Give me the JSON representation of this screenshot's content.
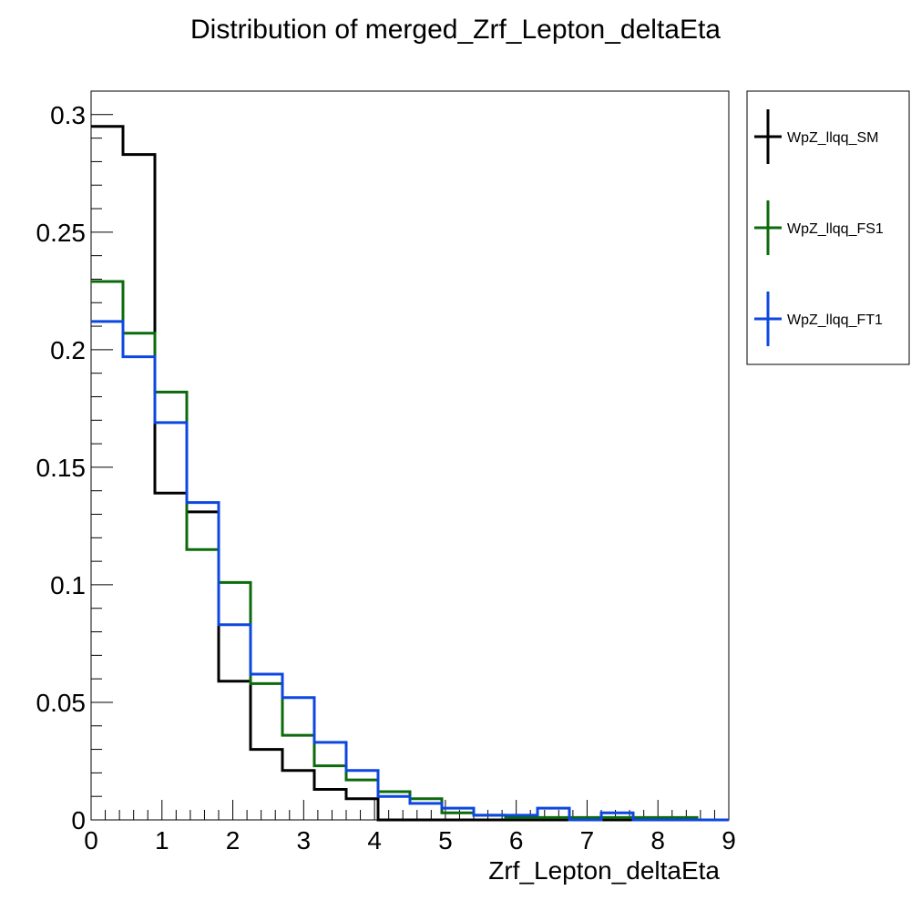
{
  "chart_data": {
    "type": "histogram",
    "title": "Distribution of merged_Zrf_Lepton_deltaEta",
    "xlabel": "Zrf_Lepton_deltaEta",
    "ylabel": "",
    "xlim": [
      0,
      9
    ],
    "ylim": [
      0,
      0.31
    ],
    "bin_edges": [
      0,
      0.45,
      0.9,
      1.35,
      1.8,
      2.25,
      2.7,
      3.15,
      3.6,
      4.05,
      4.5,
      4.95,
      5.4,
      5.85,
      6.3,
      6.75,
      7.2,
      7.65,
      8.1,
      8.55,
      9.0
    ],
    "x_ticks": [
      "0",
      "1",
      "2",
      "3",
      "4",
      "5",
      "6",
      "7",
      "8",
      "9"
    ],
    "y_ticks": [
      "0",
      "0.05",
      "0.1",
      "0.15",
      "0.2",
      "0.25",
      "0.3"
    ],
    "y_tick_values": [
      0,
      0.05,
      0.1,
      0.15,
      0.2,
      0.25,
      0.3
    ],
    "grid": false,
    "legend_position": "outside-right-top",
    "series": [
      {
        "name": "WpZ_llqq_SM",
        "color": "#000000",
        "values": [
          0.295,
          0.283,
          0.139,
          0.131,
          0.059,
          0.03,
          0.021,
          0.013,
          0.009,
          0.0,
          0.0,
          0.0,
          0.0,
          0.0,
          0.0,
          0.0,
          0.0,
          0.0,
          0.0,
          0.0
        ]
      },
      {
        "name": "WpZ_llqq_FS1",
        "color": "#0b6a0b",
        "values": [
          0.229,
          0.207,
          0.182,
          0.115,
          0.101,
          0.058,
          0.036,
          0.023,
          0.017,
          0.012,
          0.009,
          0.003,
          0.002,
          0.001,
          0.001,
          0.001,
          0.001,
          0.001,
          0.001,
          0.0
        ]
      },
      {
        "name": "WpZ_llqq_FT1",
        "color": "#0d47e0",
        "values": [
          0.212,
          0.197,
          0.169,
          0.135,
          0.083,
          0.062,
          0.052,
          0.033,
          0.021,
          0.01,
          0.007,
          0.005,
          0.002,
          0.002,
          0.005,
          0.0,
          0.003,
          0.0,
          0.0,
          0.0
        ]
      }
    ]
  }
}
